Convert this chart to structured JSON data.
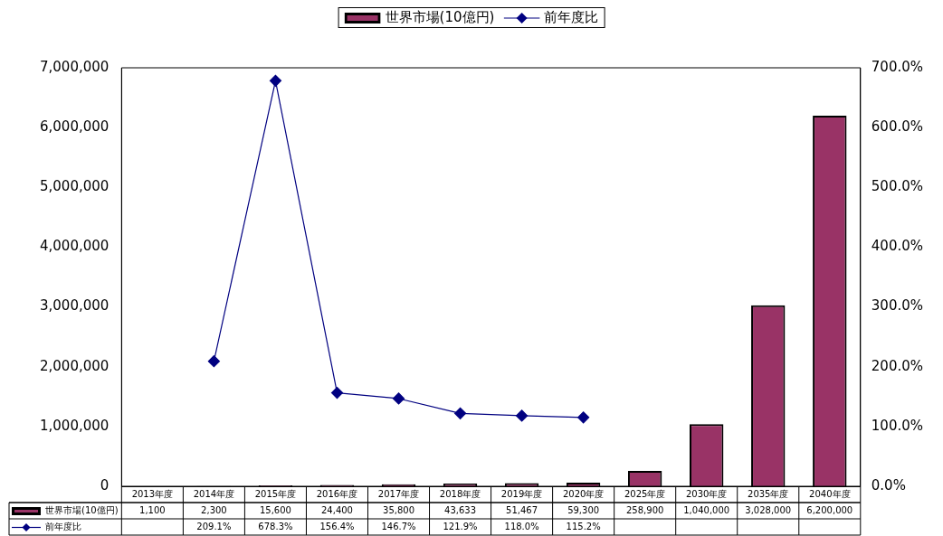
{
  "chart_data": {
    "type": "bar",
    "categories": [
      "2013年度",
      "2014年度",
      "2015年度",
      "2016年度",
      "2017年度",
      "2018年度",
      "2019年度",
      "2020年度",
      "2025年度",
      "2030年度",
      "2035年度",
      "2040年度"
    ],
    "series": [
      {
        "name": "世界市場(10億円)",
        "color": "#993366",
        "values": [
          1100,
          2300,
          15600,
          24400,
          35800,
          43633,
          51467,
          59300,
          258900,
          1040000,
          3028000,
          6200000
        ],
        "value_labels": [
          "1,100",
          "2,300",
          "15,600",
          "24,400",
          "35,800",
          "43,633",
          "51,467",
          "59,300",
          "258,900",
          "1,040,000",
          "3,028,000",
          "6,200,000"
        ]
      },
      {
        "name": "前年度比",
        "type": "line",
        "axis": "y2",
        "color": "#000080",
        "marker": "diamond",
        "values": [
          null,
          209.1,
          678.3,
          156.4,
          146.7,
          121.9,
          118.0,
          115.2,
          null,
          null,
          null,
          null
        ],
        "value_labels": [
          null,
          "209.1%",
          "678.3%",
          "156.4%",
          "146.7%",
          "121.9%",
          "118.0%",
          "115.2%",
          null,
          null,
          null,
          null
        ]
      }
    ],
    "ylim": [
      0,
      7000000
    ],
    "yticks": [
      {
        "value": 0,
        "label": "0"
      },
      {
        "value": 1000000,
        "label": "1,000,000"
      },
      {
        "value": 2000000,
        "label": "2,000,000"
      },
      {
        "value": 3000000,
        "label": "3,000,000"
      },
      {
        "value": 4000000,
        "label": "4,000,000"
      },
      {
        "value": 5000000,
        "label": "5,000,000"
      },
      {
        "value": 6000000,
        "label": "6,000,000"
      },
      {
        "value": 7000000,
        "label": "7,000,000"
      }
    ],
    "y2lim": [
      0,
      700
    ],
    "y2ticks": [
      {
        "value": 0,
        "label": "0.0%"
      },
      {
        "value": 100,
        "label": "100.0%"
      },
      {
        "value": 200,
        "label": "200.0%"
      },
      {
        "value": 300,
        "label": "300.0%"
      },
      {
        "value": 400,
        "label": "400.0%"
      },
      {
        "value": 500,
        "label": "500.0%"
      },
      {
        "value": 600,
        "label": "600.0%"
      },
      {
        "value": 700,
        "label": "700.0%"
      }
    ],
    "grid": false,
    "legend": "top",
    "data_labels": true
  }
}
